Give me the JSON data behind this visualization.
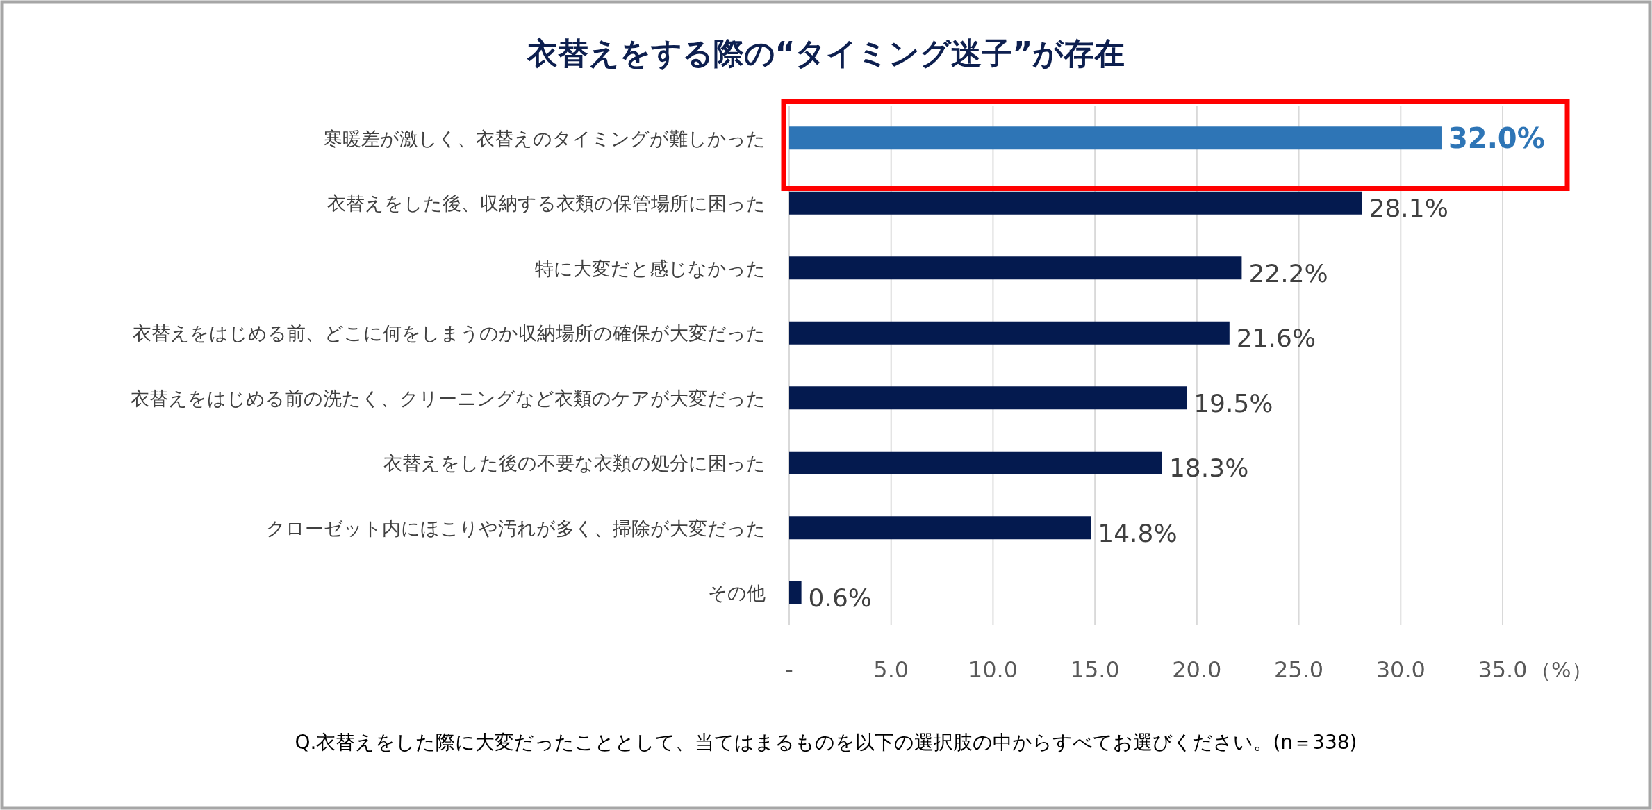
{
  "chart_data": {
    "type": "bar",
    "orientation": "horizontal",
    "title": "衣替えをする際の“タイミング迷子”が存在",
    "categories": [
      "寒暖差が激しく、衣替えのタイミングが難しかった",
      "衣替えをした後、収納する衣類の保管場所に困った",
      "特に大変だと感じなかった",
      "衣替えをはじめる前、どこに何をしまうのか収納場所の確保が大変だった",
      "衣替えをはじめる前の洗たく、クリーニングなど衣類のケアが大変だった",
      "衣替えをした後の不要な衣類の処分に困った",
      "クローゼット内にほこりや汚れが多く、掃除が大変だった",
      "その他"
    ],
    "values": [
      32.0,
      28.1,
      22.2,
      21.6,
      19.5,
      18.3,
      14.8,
      0.6
    ],
    "value_labels": [
      "32.0%",
      "28.1%",
      "22.2%",
      "21.6%",
      "19.5%",
      "18.3%",
      "14.8%",
      "0.6%"
    ],
    "colors": [
      "#2e75b6",
      "#041a4f",
      "#041a4f",
      "#041a4f",
      "#041a4f",
      "#041a4f",
      "#041a4f",
      "#041a4f"
    ],
    "xlim": [
      0,
      35
    ],
    "xticks": [
      {
        "value": 0,
        "label": "-"
      },
      {
        "value": 5,
        "label": "5.0"
      },
      {
        "value": 10,
        "label": "10.0"
      },
      {
        "value": 15,
        "label": "15.0"
      },
      {
        "value": 20,
        "label": "20.0"
      },
      {
        "value": 25,
        "label": "25.0"
      },
      {
        "value": 30,
        "label": "30.0"
      },
      {
        "value": 35,
        "label": "35.0"
      }
    ],
    "xlabel": "（%）",
    "grid": "x",
    "annotations": [
      "Q.衣替えをした際に大変だったこととして、当てはまるものを以下の選択肢の中からすべてお選びください。(n＝338)"
    ]
  }
}
